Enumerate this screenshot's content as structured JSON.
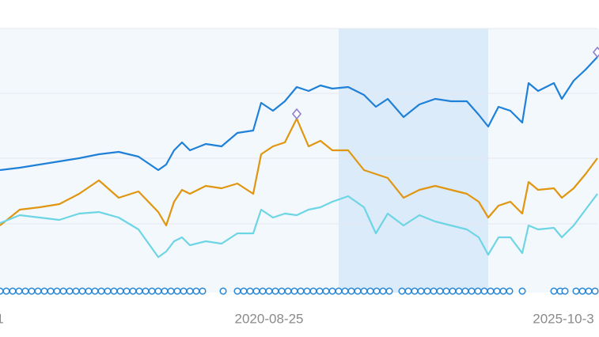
{
  "chart_data": {
    "type": "line",
    "x": [
      0,
      25,
      50,
      75,
      100,
      125,
      150,
      175,
      200,
      210,
      220,
      230,
      240,
      260,
      280,
      300,
      320,
      330,
      345,
      360,
      375,
      390,
      405,
      420,
      440,
      460,
      475,
      490,
      510,
      530,
      550,
      570,
      590,
      605,
      617,
      630,
      645,
      660,
      668,
      680,
      700,
      710,
      725,
      740,
      755
    ],
    "series": [
      {
        "color": "#1f80d8",
        "values": [
          155,
          158,
          162,
          166,
          170,
          175,
          178,
          172,
          155,
          162,
          180,
          190,
          180,
          188,
          185,
          202,
          205,
          240,
          230,
          242,
          260,
          255,
          262,
          258,
          260,
          250,
          235,
          245,
          222,
          238,
          245,
          242,
          242,
          225,
          210,
          235,
          230,
          215,
          265,
          255,
          265,
          245,
          268,
          282,
          298
        ]
      },
      {
        "color": "#e0960f",
        "values": [
          85,
          105,
          108,
          112,
          125,
          142,
          120,
          128,
          102,
          85,
          115,
          130,
          125,
          135,
          132,
          138,
          125,
          175,
          185,
          190,
          220,
          185,
          192,
          180,
          180,
          155,
          150,
          145,
          120,
          130,
          135,
          130,
          125,
          115,
          95,
          110,
          115,
          100,
          140,
          130,
          132,
          120,
          132,
          150,
          170
        ]
      },
      {
        "color": "#6dd5e3",
        "values": [
          88,
          98,
          95,
          92,
          100,
          102,
          95,
          80,
          45,
          52,
          65,
          70,
          60,
          65,
          62,
          75,
          75,
          105,
          95,
          100,
          98,
          105,
          108,
          115,
          122,
          108,
          75,
          100,
          85,
          98,
          90,
          85,
          80,
          70,
          48,
          70,
          70,
          50,
          85,
          80,
          82,
          70,
          85,
          105,
          125
        ]
      }
    ],
    "events": {
      "color": "#2a87d8",
      "x": [
        0,
        8,
        16,
        24,
        32,
        40,
        48,
        56,
        64,
        72,
        80,
        88,
        96,
        104,
        112,
        120,
        128,
        136,
        144,
        152,
        160,
        168,
        176,
        184,
        192,
        200,
        208,
        216,
        224,
        232,
        240,
        248,
        256,
        282,
        300,
        308,
        316,
        324,
        332,
        340,
        348,
        356,
        364,
        372,
        380,
        388,
        396,
        404,
        412,
        420,
        428,
        436,
        444,
        452,
        460,
        468,
        476,
        484,
        492,
        508,
        516,
        524,
        532,
        540,
        548,
        556,
        564,
        572,
        580,
        588,
        596,
        604,
        612,
        620,
        628,
        636,
        644,
        660,
        700,
        708,
        714,
        728,
        736,
        744,
        752
      ]
    },
    "highlight_range": [
      428,
      617
    ],
    "marker_color": "#8b7fd0",
    "xlim": [
      0,
      755
    ],
    "xticks": [
      {
        "value": 0,
        "label": "1"
      },
      {
        "value": 340,
        "label": "2020-08-25"
      },
      {
        "value": 712,
        "label": "2025-10-3"
      }
    ],
    "ylim": [
      0,
      334
    ],
    "yticks": [
      87,
      170,
      252,
      334
    ],
    "grid": true
  }
}
